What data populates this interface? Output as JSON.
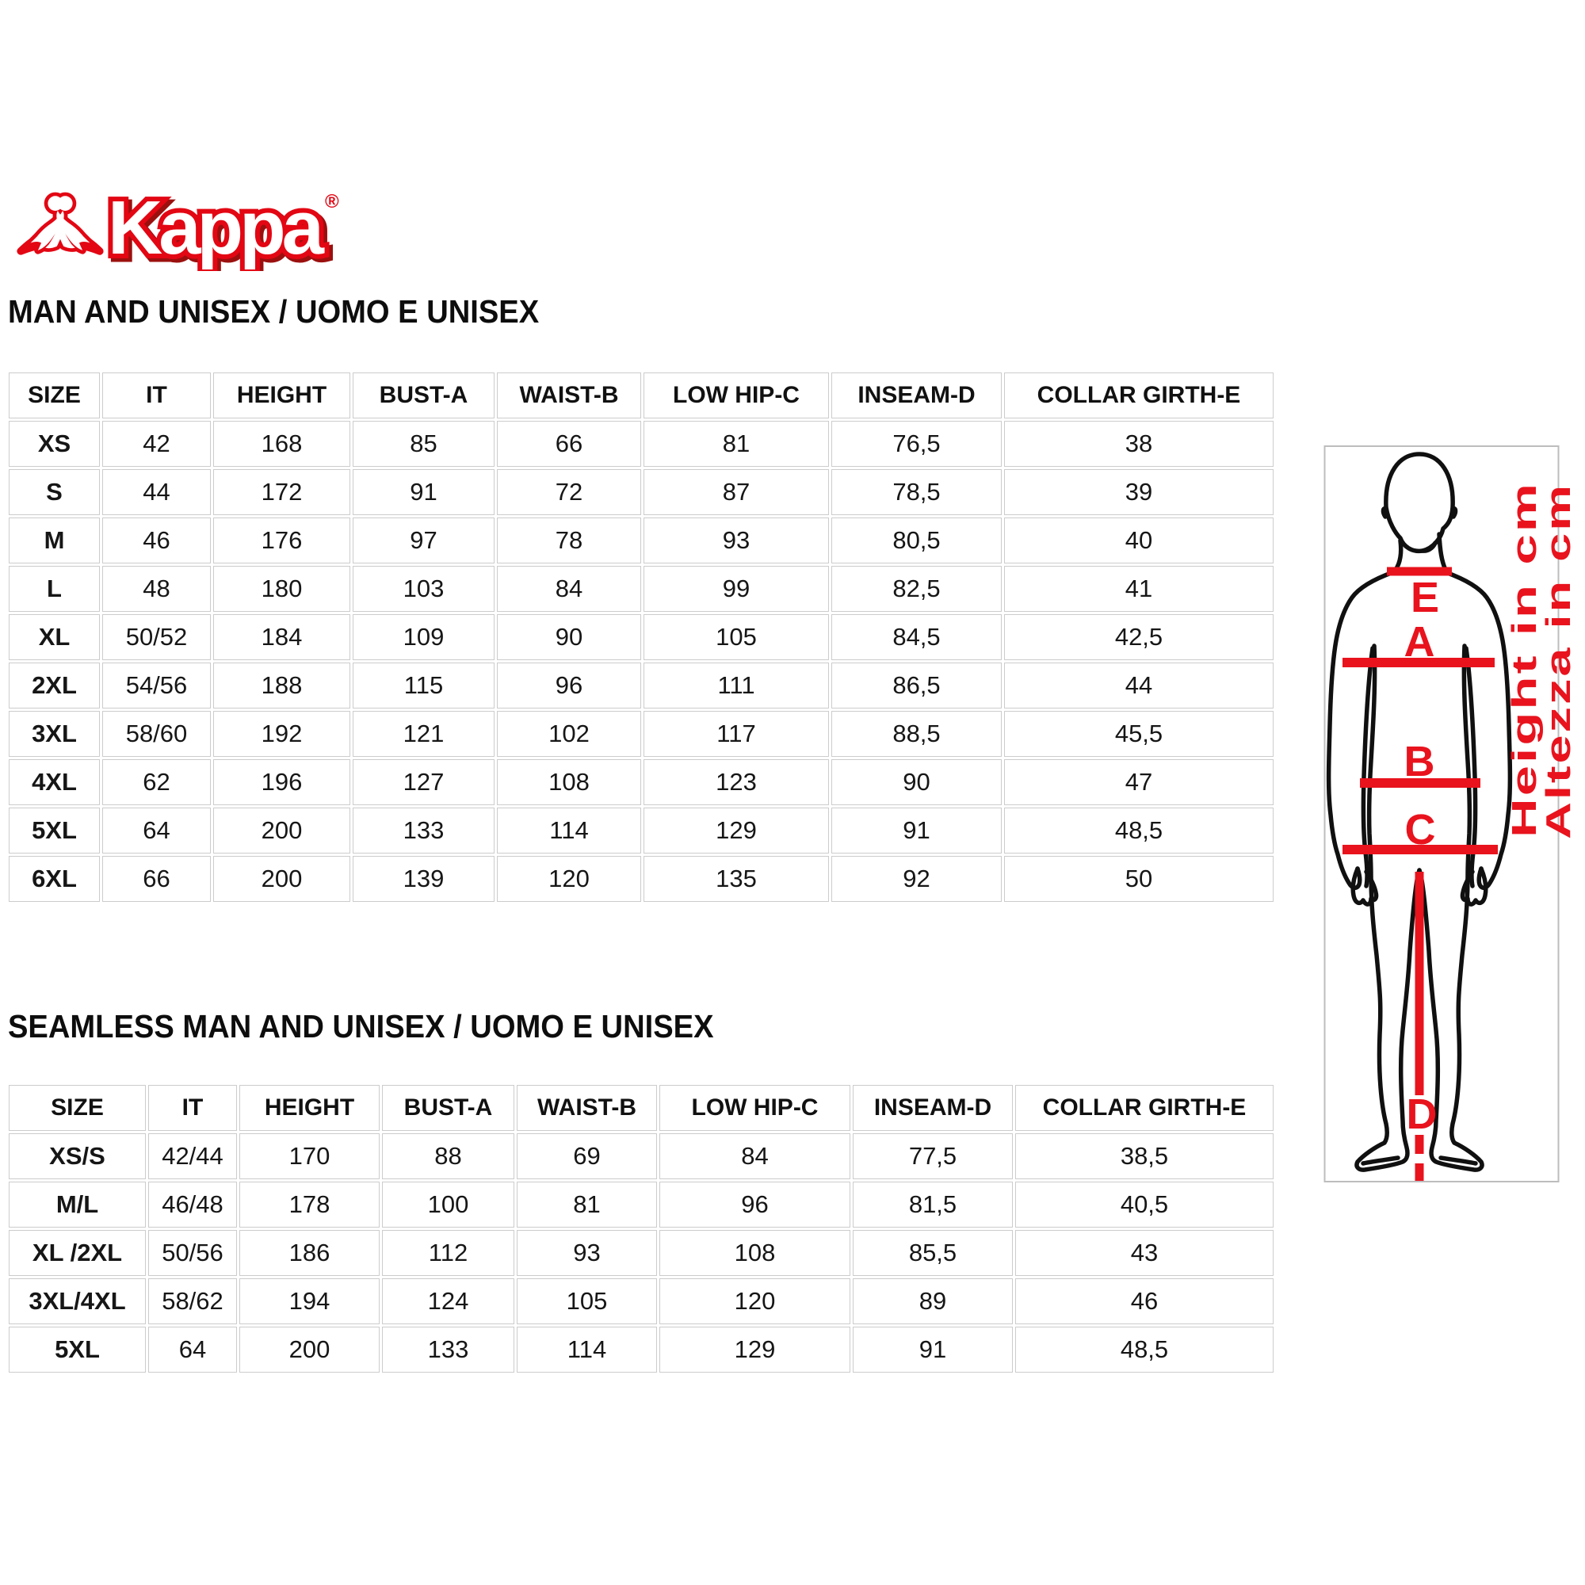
{
  "logo": {
    "brand": "Kappa",
    "registered": "®"
  },
  "tables": [
    {
      "title": "MAN AND UNISEX / UOMO E UNISEX",
      "headers": [
        "SIZE",
        "IT",
        "HEIGHT",
        "BUST-A",
        "WAIST-B",
        "LOW HIP-C",
        "INSEAM-D",
        "COLLAR GIRTH-E"
      ],
      "rows": [
        [
          "XS",
          "42",
          "168",
          "85",
          "66",
          "81",
          "76,5",
          "38"
        ],
        [
          "S",
          "44",
          "172",
          "91",
          "72",
          "87",
          "78,5",
          "39"
        ],
        [
          "M",
          "46",
          "176",
          "97",
          "78",
          "93",
          "80,5",
          "40"
        ],
        [
          "L",
          "48",
          "180",
          "103",
          "84",
          "99",
          "82,5",
          "41"
        ],
        [
          "XL",
          "50/52",
          "184",
          "109",
          "90",
          "105",
          "84,5",
          "42,5"
        ],
        [
          "2XL",
          "54/56",
          "188",
          "115",
          "96",
          "111",
          "86,5",
          "44"
        ],
        [
          "3XL",
          "58/60",
          "192",
          "121",
          "102",
          "117",
          "88,5",
          "45,5"
        ],
        [
          "4XL",
          "62",
          "196",
          "127",
          "108",
          "123",
          "90",
          "47"
        ],
        [
          "5XL",
          "64",
          "200",
          "133",
          "114",
          "129",
          "91",
          "48,5"
        ],
        [
          "6XL",
          "66",
          "200",
          "139",
          "120",
          "135",
          "92",
          "50"
        ]
      ]
    },
    {
      "title": "SEAMLESS MAN AND UNISEX / UOMO E UNISEX",
      "headers": [
        "SIZE",
        "IT",
        "HEIGHT",
        "BUST-A",
        "WAIST-B",
        "LOW HIP-C",
        "INSEAM-D",
        "COLLAR GIRTH-E"
      ],
      "rows": [
        [
          "XS/S",
          "42/44",
          "170",
          "88",
          "69",
          "84",
          "77,5",
          "38,5"
        ],
        [
          "M/L",
          "46/48",
          "178",
          "100",
          "81",
          "96",
          "81,5",
          "40,5"
        ],
        [
          "XL /2XL",
          "50/56",
          "186",
          "112",
          "93",
          "108",
          "85,5",
          "43"
        ],
        [
          "3XL/4XL",
          "58/62",
          "194",
          "124",
          "105",
          "120",
          "89",
          "46"
        ],
        [
          "5XL",
          "64",
          "200",
          "133",
          "114",
          "129",
          "91",
          "48,5"
        ]
      ]
    }
  ],
  "figure": {
    "labels": [
      "E",
      "A",
      "B",
      "C",
      "D"
    ],
    "height_note": "Height in cm",
    "altezza_note": "Altezza in cm"
  },
  "colors": {
    "brand_red": "#e30613",
    "measure_red": "#e8131d",
    "grid_border": "#cccccc",
    "text": "#161616"
  }
}
